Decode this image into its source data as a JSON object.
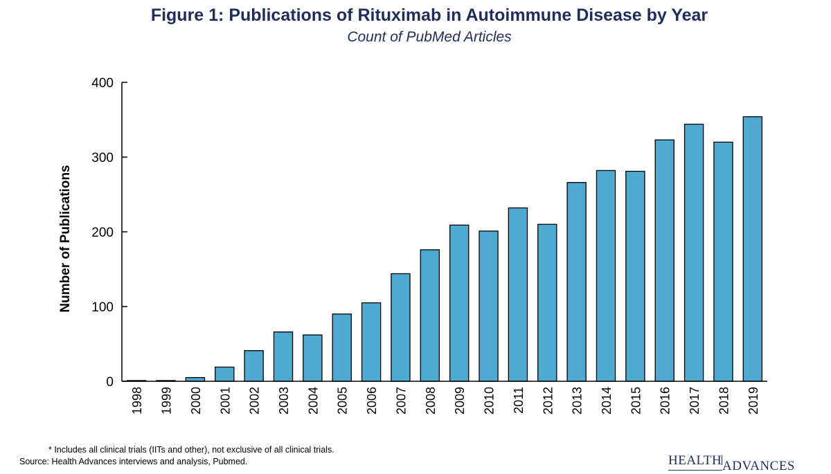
{
  "chart_data": {
    "type": "bar",
    "title": "Figure 1: Publications of Rituximab in Autoimmune Disease by Year",
    "subtitle": "Count of PubMed Articles",
    "xlabel": "",
    "ylabel": "Number of Publications",
    "ylim": [
      0,
      400
    ],
    "yticks": [
      0,
      100,
      200,
      300,
      400
    ],
    "grid": false,
    "bar_color": "#4fa9d1",
    "categories": [
      "1998",
      "1999",
      "2000",
      "2001",
      "2002",
      "2003",
      "2004",
      "2005",
      "2006",
      "2007",
      "2008",
      "2009",
      "2010",
      "2011",
      "2012",
      "2013",
      "2014",
      "2015",
      "2016",
      "2017",
      "2018",
      "2019"
    ],
    "values": [
      1,
      1,
      5,
      19,
      41,
      66,
      62,
      90,
      105,
      144,
      176,
      209,
      201,
      232,
      210,
      266,
      282,
      281,
      323,
      344,
      320,
      354
    ]
  },
  "footnote": "*  Includes all clinical trials (IITs and other), not exclusive of all clinical trials.",
  "source": "Source:  Health Advances interviews and analysis, Pubmed.",
  "logo": {
    "line1": "HEALTH",
    "line2": "ADVANCES"
  }
}
